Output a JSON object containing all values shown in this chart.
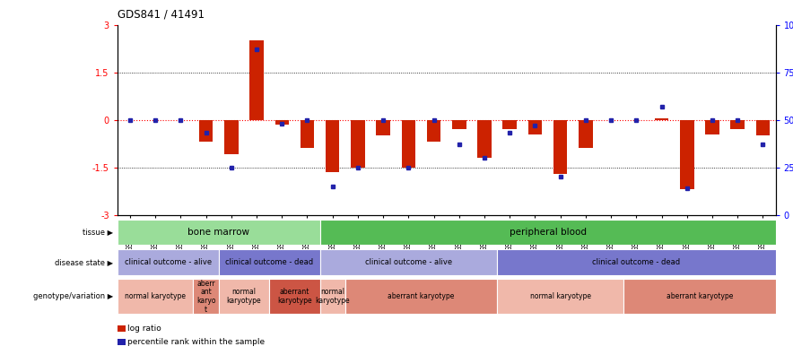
{
  "title": "GDS841 / 41491",
  "samples": [
    "GSM6234",
    "GSM6247",
    "GSM6249",
    "GSM6242",
    "GSM6233",
    "GSM6250",
    "GSM6229",
    "GSM6231",
    "GSM6237",
    "GSM6236",
    "GSM6248",
    "GSM6239",
    "GSM6241",
    "GSM6244",
    "GSM6245",
    "GSM6246",
    "GSM6232",
    "GSM6235",
    "GSM6240",
    "GSM6252",
    "GSM6253",
    "GSM6228",
    "GSM6230",
    "GSM6238",
    "GSM6243",
    "GSM6251"
  ],
  "log_ratio": [
    0.0,
    0.0,
    0.0,
    -0.7,
    -1.1,
    2.5,
    -0.15,
    -0.9,
    -1.65,
    -1.5,
    -0.5,
    -1.5,
    -0.7,
    -0.3,
    -1.2,
    -0.3,
    -0.45,
    -1.7,
    -0.9,
    0.0,
    0.0,
    0.05,
    -2.2,
    -0.45,
    -0.3,
    -0.5
  ],
  "percentile": [
    50,
    50,
    50,
    43,
    25,
    87,
    48,
    50,
    15,
    25,
    50,
    25,
    50,
    37,
    30,
    43,
    47,
    20,
    50,
    50,
    50,
    57,
    14,
    50,
    50,
    37
  ],
  "bar_color": "#cc2200",
  "dot_color": "#2222aa",
  "tissue_groups": [
    {
      "label": "bone marrow",
      "start": 0,
      "end": 8,
      "color": "#99dd99"
    },
    {
      "label": "peripheral blood",
      "start": 8,
      "end": 26,
      "color": "#55bb55"
    }
  ],
  "disease_groups": [
    {
      "label": "clinical outcome - alive",
      "start": 0,
      "end": 4,
      "color": "#aaaadd"
    },
    {
      "label": "clinical outcome - dead",
      "start": 4,
      "end": 8,
      "color": "#7777cc"
    },
    {
      "label": "clinical outcome - alive",
      "start": 8,
      "end": 15,
      "color": "#aaaadd"
    },
    {
      "label": "clinical outcome - dead",
      "start": 15,
      "end": 26,
      "color": "#7777cc"
    }
  ],
  "geno_groups": [
    {
      "label": "normal karyotype",
      "start": 0,
      "end": 3,
      "color": "#f0b8aa"
    },
    {
      "label": "aberr\nant\nkaryo\nt",
      "start": 3,
      "end": 4,
      "color": "#dd8877"
    },
    {
      "label": "normal\nkaryotype",
      "start": 4,
      "end": 6,
      "color": "#f0b8aa"
    },
    {
      "label": "aberrant\nkaryotype",
      "start": 6,
      "end": 8,
      "color": "#cc5544"
    },
    {
      "label": "normal\nkaryotype",
      "start": 8,
      "end": 9,
      "color": "#f0b8aa"
    },
    {
      "label": "aberrant karyotype",
      "start": 9,
      "end": 15,
      "color": "#dd8877"
    },
    {
      "label": "normal karyotype",
      "start": 15,
      "end": 20,
      "color": "#f0b8aa"
    },
    {
      "label": "aberrant karyotype",
      "start": 20,
      "end": 26,
      "color": "#dd8877"
    }
  ],
  "row_labels": [
    "tissue",
    "disease state",
    "genotype/variation"
  ],
  "legend_items": [
    {
      "color": "#cc2200",
      "label": "log ratio"
    },
    {
      "color": "#2222aa",
      "label": "percentile rank within the sample"
    }
  ]
}
